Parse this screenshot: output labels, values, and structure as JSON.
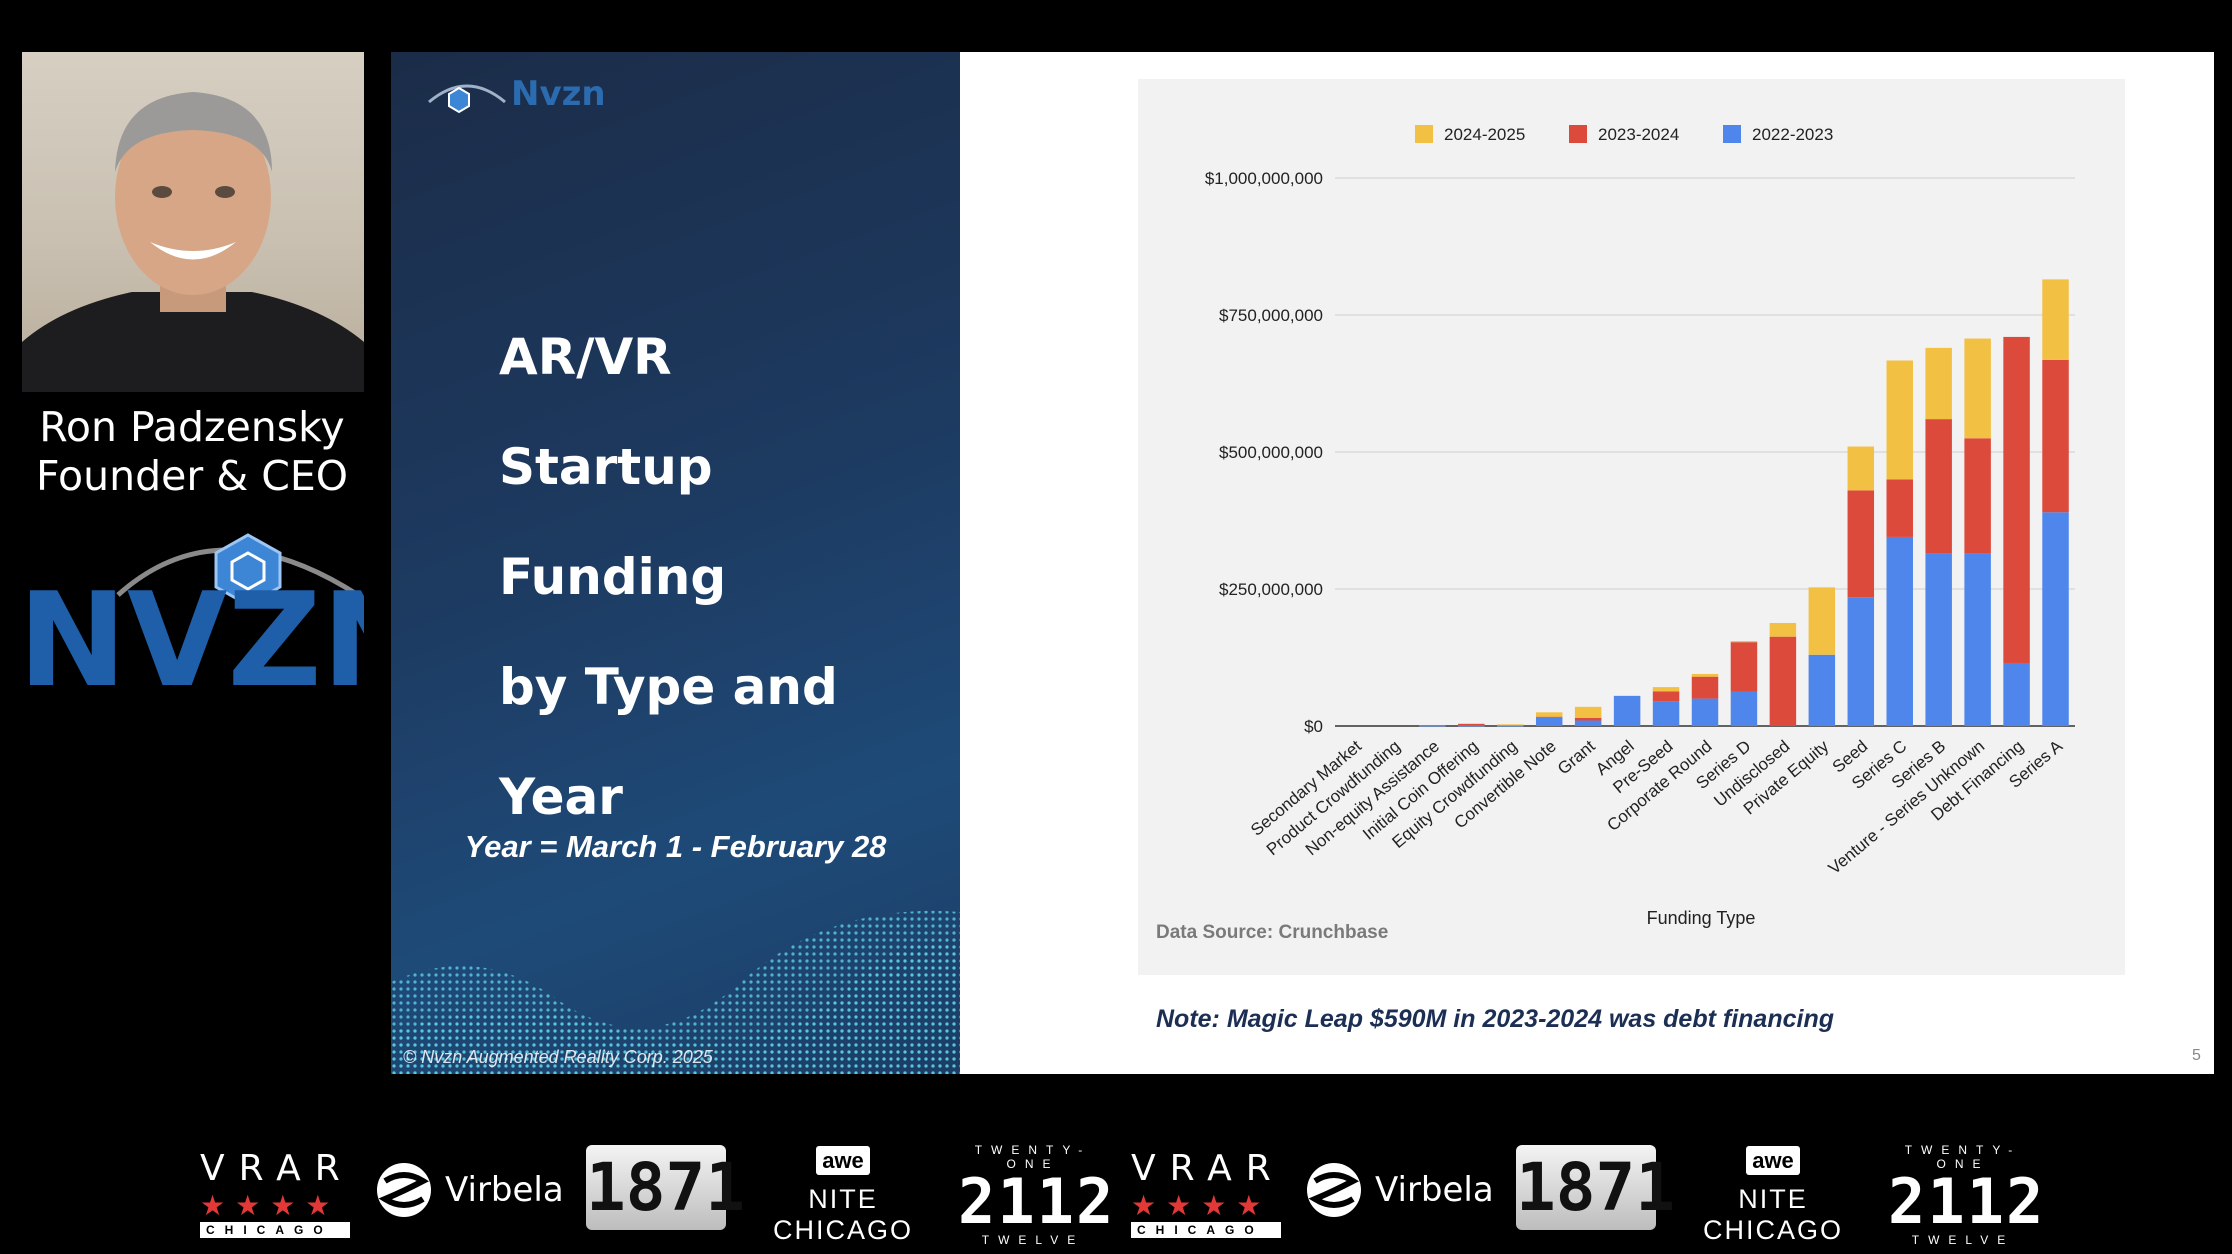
{
  "speaker": {
    "name": "Ron Padzensky",
    "title": "Founder & CEO",
    "logo_text": "NVZN"
  },
  "slide": {
    "logo_text": "Nvzn",
    "title_lines": [
      "AR/VR",
      "Startup",
      "Funding",
      "by Type and",
      "Year"
    ],
    "year_note": "Year = March 1 - February 28",
    "copyright": "© Nvzn Augmented Reality Corp. 2025",
    "data_source": "Data Source: Crunchbase",
    "note": "Note: Magic Leap $590M in 2023-2024 was debt financing",
    "page_number": "5"
  },
  "colors": {
    "y2022": "#4f86ec",
    "y2023": "#dc4a3b",
    "y2024": "#f2c144",
    "grid": "#cfcfcf"
  },
  "chart_data": {
    "type": "bar",
    "stacked": true,
    "xlabel": "Funding Type",
    "ylabel": "",
    "ylim": [
      0,
      1000000000
    ],
    "yticks": [
      0,
      250000000,
      500000000,
      750000000,
      1000000000
    ],
    "ytick_labels": [
      "$0",
      "$250,000,000",
      "$500,000,000",
      "$750,000,000",
      "$1,000,000,000"
    ],
    "legend": [
      "2024-2025",
      "2023-2024",
      "2022-2023"
    ],
    "legend_position": "top",
    "categories": [
      "Secondary Market",
      "Product Crowdfunding",
      "Non-equity Assistance",
      "Initial Coin Offering",
      "Equity Crowdfunding",
      "Convertible Note",
      "Grant",
      "Angel",
      "Pre-Seed",
      "Corporate Round",
      "Series D",
      "Undisclosed",
      "Private Equity",
      "Seed",
      "Series C",
      "Series B",
      "Venture - Series Unknown",
      "Debt Financing",
      "Series A"
    ],
    "series": [
      {
        "name": "2022-2023",
        "values": [
          0,
          0,
          1000000,
          1000000,
          1000000,
          15000000,
          10000000,
          55000000,
          45000000,
          50000000,
          63000000,
          0,
          130000000,
          235000000,
          345000000,
          315000000,
          315000000,
          115000000,
          390000000
        ]
      },
      {
        "name": "2023-2024",
        "values": [
          0,
          0,
          0,
          3000000,
          0,
          2000000,
          5000000,
          0,
          18000000,
          40000000,
          90000000,
          163000000,
          0,
          195000000,
          105000000,
          245000000,
          210000000,
          595000000,
          278000000
        ]
      },
      {
        "name": "2024-2025",
        "values": [
          0,
          0,
          0,
          0,
          2000000,
          8000000,
          20000000,
          0,
          8000000,
          5000000,
          2000000,
          25000000,
          123000000,
          80000000,
          217000000,
          130000000,
          182000000,
          0,
          147000000
        ]
      }
    ]
  },
  "sponsors": {
    "vrar": {
      "title": "VRAR",
      "stars": "★★★★",
      "sub": "CHICAGO"
    },
    "virbela": "Virbela",
    "b1871": "1871",
    "awe": {
      "badge": "awe",
      "sub": "NITE CHICAGO"
    },
    "t2112": {
      "top": "TWENTY-ONE",
      "main": "2112",
      "bottom": "TWELVE"
    }
  }
}
